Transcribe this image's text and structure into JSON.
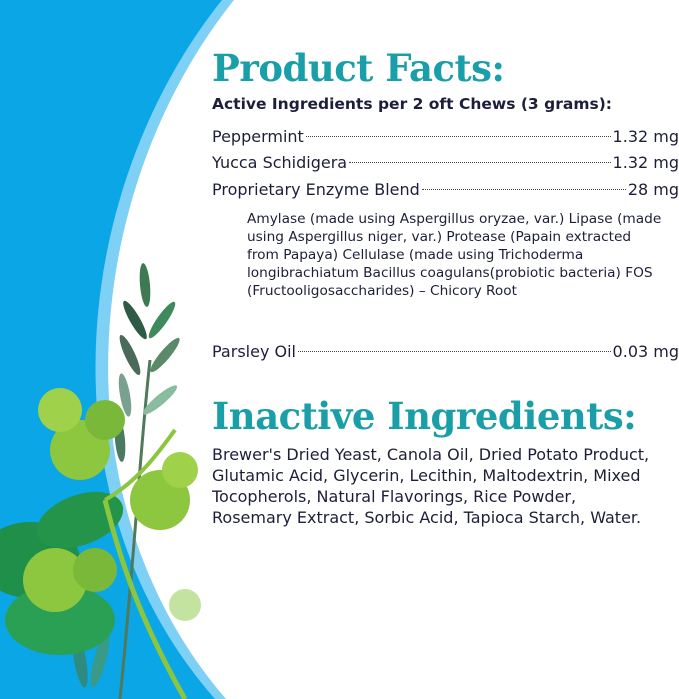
{
  "product_facts": {
    "title": "Product Facts:",
    "subtitle": "Active Ingredients per 2 oft Chews (3 grams):",
    "ingredients": [
      {
        "name": "Peppermint",
        "amount": "1.32 mg"
      },
      {
        "name": "Yucca Schidigera",
        "amount": "1.32 mg"
      },
      {
        "name": "Proprietary Enzyme Blend",
        "amount": "28 mg"
      },
      {
        "name": "Parsley Oil",
        "amount": "0.03 mg"
      }
    ],
    "blend_detail": "Amylase (made using Aspergillus oryzae, var.) Lipase (made using Aspergillus niger, var.) Protease (Papain extracted from Papaya) Cellulase (made using Trichoderma longibrachiatum Bacillus coagulans(probiotic bacteria) FOS (Fructooligosaccharides) – Chicory Root"
  },
  "inactive": {
    "title": "Inactive Ingredients:",
    "text": "Brewer's Dried Yeast, Canola Oil, Dried Potato Product, Glutamic Acid, Glycerin, Lecithin, Maltodextrin, Mixed Tocopherols, Natural Flavorings, Rice Powder, Rosemary Extract, Sorbic Acid, Tapioca Starch, Water."
  },
  "colors": {
    "background_blue": "#0aa6e6",
    "accent_teal": "#1a9fa8",
    "text_navy": "#1d1f3a"
  },
  "decorations": [
    "parsley-icon",
    "rosemary-icon",
    "mint-icon"
  ]
}
